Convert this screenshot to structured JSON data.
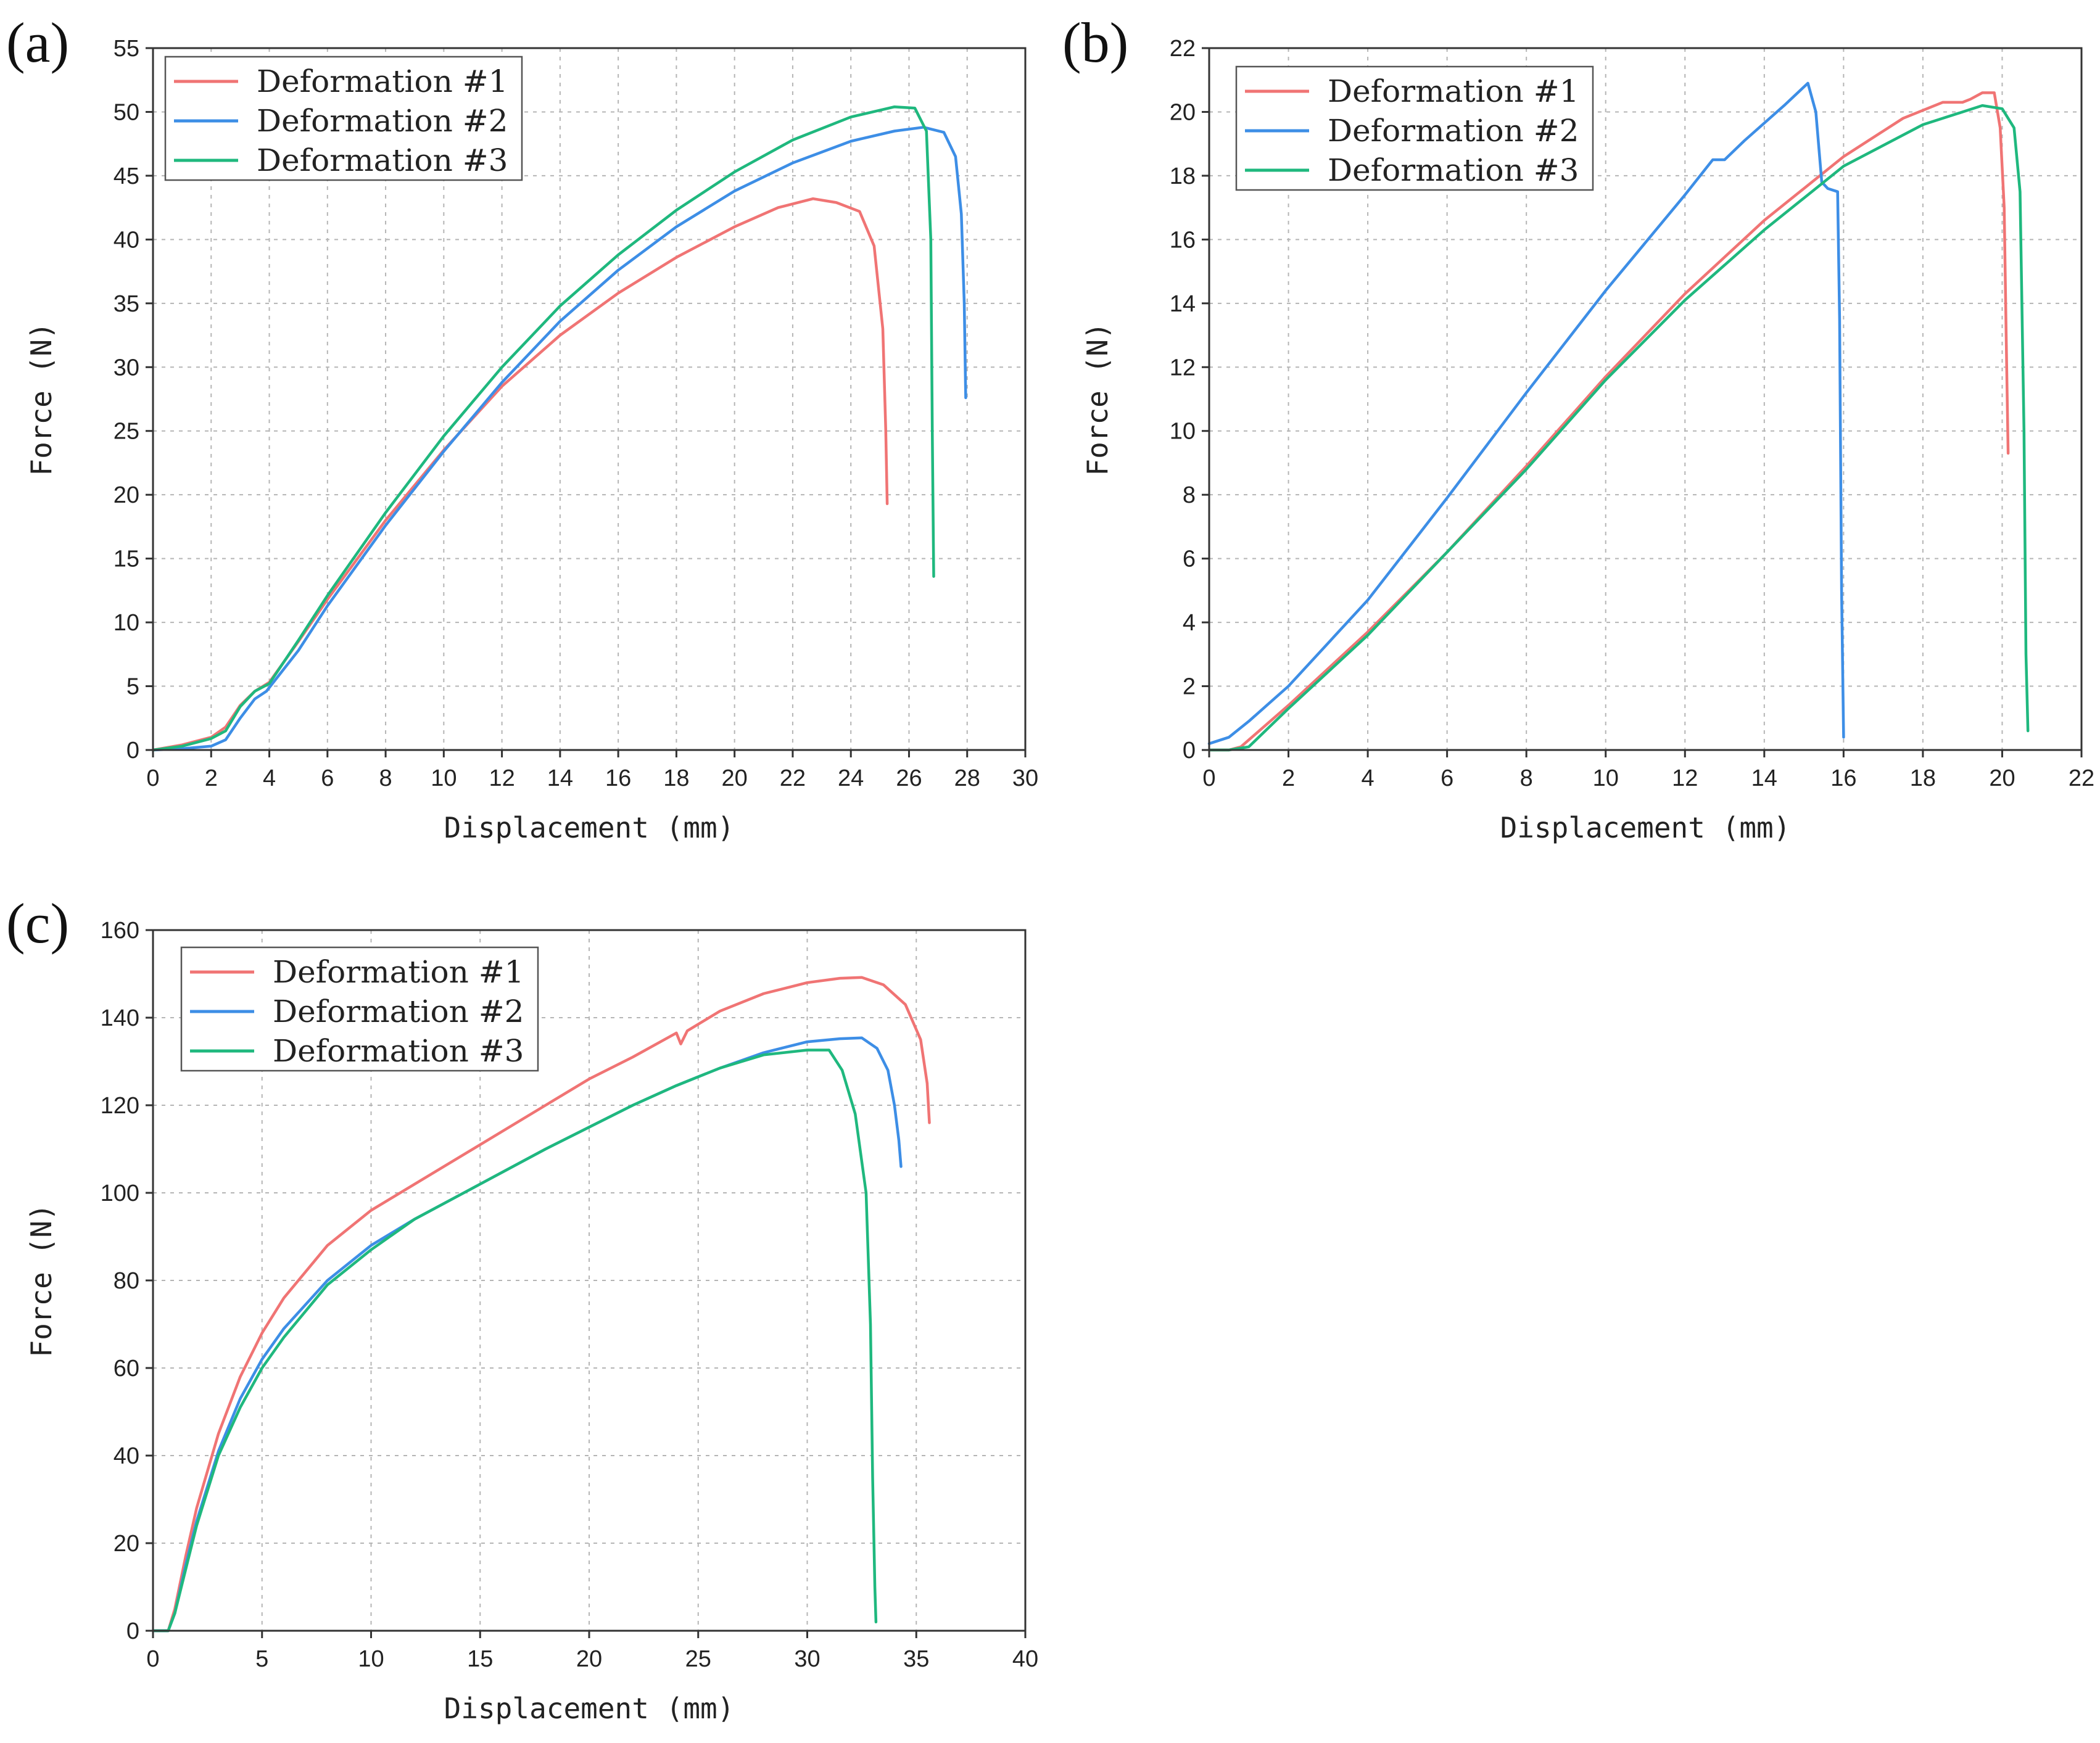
{
  "colors": {
    "series1": "#f07474",
    "series2": "#3d8ee6",
    "series3": "#1fb87e"
  },
  "chart_data": [
    {
      "panel": "(a)",
      "type": "line",
      "xlabel": "Displacement (mm)",
      "ylabel": "Force (N)",
      "xlim": [
        0,
        30
      ],
      "ylim": [
        0,
        55
      ],
      "xticks": [
        0,
        2,
        4,
        6,
        8,
        10,
        12,
        14,
        16,
        18,
        20,
        22,
        24,
        26,
        28,
        30
      ],
      "yticks": [
        0,
        5,
        10,
        15,
        20,
        25,
        30,
        35,
        40,
        45,
        50,
        55
      ],
      "grid": true,
      "legend_position": "top-left",
      "series": [
        {
          "name": "Deformation #1",
          "color": "#f07474",
          "x": [
            0,
            1,
            2,
            2.5,
            3,
            3.5,
            4,
            5,
            6,
            8,
            10,
            12,
            14,
            16,
            18,
            20,
            21.5,
            22.7,
            23.5,
            24.3,
            24.8,
            25.1,
            25.2,
            25.25
          ],
          "y": [
            0,
            0.4,
            1.0,
            1.8,
            3.5,
            4.6,
            5.3,
            8.5,
            11.8,
            18.0,
            23.5,
            28.5,
            32.5,
            35.8,
            38.6,
            41.0,
            42.5,
            43.2,
            42.9,
            42.2,
            39.5,
            33.0,
            25.0,
            19.3
          ]
        },
        {
          "name": "Deformation #2",
          "color": "#3d8ee6",
          "x": [
            0,
            1,
            2,
            2.5,
            3,
            3.5,
            3.9,
            5,
            6,
            8,
            10,
            12,
            14,
            16,
            18,
            20,
            22,
            24,
            25.5,
            26.5,
            27.2,
            27.6,
            27.8,
            27.9,
            27.95
          ],
          "y": [
            0,
            0.1,
            0.3,
            0.8,
            2.5,
            4.0,
            4.6,
            7.8,
            11.3,
            17.6,
            23.4,
            28.8,
            33.6,
            37.6,
            41.0,
            43.8,
            46.0,
            47.7,
            48.5,
            48.8,
            48.4,
            46.5,
            42.0,
            35.0,
            27.6
          ]
        },
        {
          "name": "Deformation #3",
          "color": "#1fb87e",
          "x": [
            0,
            1,
            2,
            2.5,
            3,
            3.5,
            4,
            5,
            6,
            8,
            10,
            12,
            14,
            16,
            18,
            20,
            22,
            24,
            25.5,
            26.2,
            26.6,
            26.75,
            26.8,
            26.85
          ],
          "y": [
            0,
            0.3,
            0.9,
            1.5,
            3.4,
            4.6,
            5.2,
            8.6,
            12.1,
            18.6,
            24.6,
            30.0,
            34.8,
            38.8,
            42.3,
            45.3,
            47.8,
            49.6,
            50.4,
            50.3,
            48.5,
            40.0,
            25.0,
            13.6
          ]
        }
      ]
    },
    {
      "panel": "(b)",
      "type": "line",
      "xlabel": "Displacement (mm)",
      "ylabel": "Force (N)",
      "xlim": [
        0,
        22
      ],
      "ylim": [
        0,
        22
      ],
      "xticks": [
        0,
        2,
        4,
        6,
        8,
        10,
        12,
        14,
        16,
        18,
        20,
        22
      ],
      "yticks": [
        0,
        2,
        4,
        6,
        8,
        10,
        12,
        14,
        16,
        18,
        20,
        22
      ],
      "grid": true,
      "legend_position": "top-left",
      "series": [
        {
          "name": "Deformation #1",
          "color": "#f07474",
          "x": [
            0,
            0.5,
            0.8,
            2,
            4,
            6,
            8,
            10,
            12,
            14,
            16,
            17.5,
            18.5,
            19,
            19.2,
            19.5,
            19.8,
            19.95,
            20.05,
            20.1,
            20.15
          ],
          "y": [
            0,
            0,
            0.1,
            1.4,
            3.7,
            6.2,
            8.9,
            11.7,
            14.3,
            16.6,
            18.6,
            19.8,
            20.3,
            20.3,
            20.4,
            20.6,
            20.6,
            19.5,
            17.0,
            13.0,
            9.3
          ]
        },
        {
          "name": "Deformation #2",
          "color": "#3d8ee6",
          "x": [
            0,
            0.5,
            1,
            2,
            4,
            6,
            8,
            10,
            12,
            12.7,
            13,
            13.5,
            14.5,
            15.1,
            15.3,
            15.45,
            15.6,
            15.85,
            15.9,
            15.95,
            16.0
          ],
          "y": [
            0.2,
            0.4,
            0.9,
            2.0,
            4.7,
            7.9,
            11.2,
            14.4,
            17.4,
            18.5,
            18.5,
            19.1,
            20.2,
            20.9,
            20.0,
            17.8,
            17.6,
            17.5,
            13.5,
            5.0,
            0.4
          ]
        },
        {
          "name": "Deformation #3",
          "color": "#1fb87e",
          "x": [
            0,
            0.5,
            1,
            2,
            4,
            6,
            8,
            10,
            12,
            14,
            16,
            18,
            19,
            19.5,
            20,
            20.3,
            20.45,
            20.55,
            20.6,
            20.65
          ],
          "y": [
            0,
            0,
            0.1,
            1.3,
            3.6,
            6.2,
            8.8,
            11.6,
            14.1,
            16.3,
            18.3,
            19.6,
            20.0,
            20.2,
            20.1,
            19.5,
            17.5,
            10.0,
            3.0,
            0.6
          ]
        }
      ]
    },
    {
      "panel": "(c)",
      "type": "line",
      "xlabel": "Displacement (mm)",
      "ylabel": "Force (N)",
      "xlim": [
        0,
        40
      ],
      "ylim": [
        0,
        160
      ],
      "xticks": [
        0,
        5,
        10,
        15,
        20,
        25,
        30,
        35,
        40
      ],
      "yticks": [
        0,
        20,
        40,
        60,
        80,
        100,
        120,
        140,
        160
      ],
      "grid": true,
      "legend_position": "top-left",
      "series": [
        {
          "name": "Deformation #1",
          "color": "#f07474",
          "x": [
            0,
            0.7,
            1,
            1.5,
            2,
            3,
            4,
            5,
            6,
            8,
            10,
            12,
            15,
            18,
            20,
            22,
            24,
            24.2,
            24.5,
            26,
            28,
            30,
            31.5,
            32.5,
            33.5,
            34.5,
            35.2,
            35.5,
            35.6
          ],
          "y": [
            0,
            0,
            5,
            17,
            28,
            45,
            58,
            68,
            76,
            88,
            96,
            102,
            111,
            120,
            126,
            131,
            136.5,
            134,
            137,
            141.5,
            145.5,
            148,
            149,
            149.2,
            147.5,
            143,
            135,
            125,
            116
          ]
        },
        {
          "name": "Deformation #2",
          "color": "#3d8ee6",
          "x": [
            0,
            0.7,
            1,
            1.5,
            2,
            3,
            4,
            5,
            6,
            8,
            10,
            12,
            15,
            18,
            20,
            22,
            24,
            26,
            28,
            30,
            31.5,
            32.5,
            33.2,
            33.7,
            34.0,
            34.2,
            34.3
          ],
          "y": [
            0,
            0,
            4,
            15,
            25,
            41,
            53,
            62,
            69,
            80,
            88,
            94,
            102,
            110,
            115,
            120,
            124.5,
            128.5,
            132,
            134.5,
            135.2,
            135.4,
            133,
            128,
            120,
            112,
            106
          ]
        },
        {
          "name": "Deformation #3",
          "color": "#1fb87e",
          "x": [
            0,
            0.7,
            1,
            1.5,
            2,
            3,
            4,
            5,
            6,
            8,
            10,
            12,
            15,
            18,
            20,
            22,
            24,
            26,
            28,
            30,
            31,
            31.6,
            32.2,
            32.7,
            32.9,
            33.0,
            33.1,
            33.15
          ],
          "y": [
            0,
            0,
            4,
            14,
            24,
            40,
            51,
            60,
            67,
            79,
            87,
            94,
            102,
            110,
            115,
            120,
            124.5,
            128.5,
            131.5,
            132.6,
            132.6,
            128,
            118,
            100,
            70,
            35,
            10,
            2
          ]
        }
      ]
    }
  ]
}
